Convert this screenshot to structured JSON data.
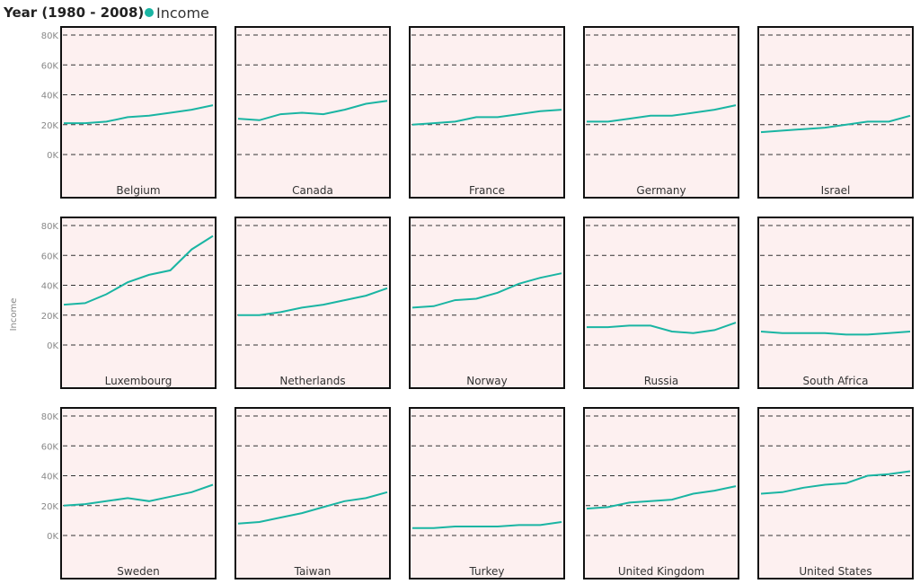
{
  "chart_data": {
    "type": "line",
    "title": "Year (1980 - 2008)",
    "ylabel": "Income",
    "ylim": [
      0,
      80000
    ],
    "yticks": [
      "0K",
      "20K",
      "40K",
      "60K",
      "80K"
    ],
    "grid": true,
    "legend": {
      "placement": "top-left",
      "entries": [
        "Income"
      ]
    },
    "colors": {
      "line": "#1ab5a3",
      "panel_bg": "#fdf0f0",
      "grid": "#333333"
    },
    "x": [
      1980,
      1984,
      1988,
      1992,
      1996,
      2000,
      2004,
      2008
    ],
    "panels": [
      {
        "name": "Belgium",
        "values": [
          21000,
          21000,
          22000,
          25000,
          26000,
          28000,
          30000,
          33000
        ]
      },
      {
        "name": "Canada",
        "values": [
          24000,
          23000,
          27000,
          28000,
          27000,
          30000,
          34000,
          36000
        ]
      },
      {
        "name": "France",
        "values": [
          20000,
          21000,
          22000,
          25000,
          25000,
          27000,
          29000,
          30000
        ]
      },
      {
        "name": "Germany",
        "values": [
          22000,
          22000,
          24000,
          26000,
          26000,
          28000,
          30000,
          33000
        ]
      },
      {
        "name": "Israel",
        "values": [
          15000,
          16000,
          17000,
          18000,
          20000,
          22000,
          22000,
          26000
        ]
      },
      {
        "name": "Luxembourg",
        "values": [
          27000,
          28000,
          34000,
          42000,
          47000,
          50000,
          64000,
          73000
        ]
      },
      {
        "name": "Netherlands",
        "values": [
          20000,
          20000,
          22000,
          25000,
          27000,
          30000,
          33000,
          38000
        ]
      },
      {
        "name": "Norway",
        "values": [
          25000,
          26000,
          30000,
          31000,
          35000,
          41000,
          45000,
          48000
        ]
      },
      {
        "name": "Russia",
        "values": [
          12000,
          12000,
          13000,
          13000,
          9000,
          8000,
          10000,
          15000
        ]
      },
      {
        "name": "South Africa",
        "values": [
          9000,
          8000,
          8000,
          8000,
          7000,
          7000,
          8000,
          9000
        ]
      },
      {
        "name": "Sweden",
        "values": [
          20000,
          21000,
          23000,
          25000,
          23000,
          26000,
          29000,
          34000
        ]
      },
      {
        "name": "Taiwan",
        "values": [
          8000,
          9000,
          12000,
          15000,
          19000,
          23000,
          25000,
          29000
        ]
      },
      {
        "name": "Turkey",
        "values": [
          5000,
          5000,
          6000,
          6000,
          6000,
          7000,
          7000,
          9000
        ]
      },
      {
        "name": "United Kingdom",
        "values": [
          18000,
          19000,
          22000,
          23000,
          24000,
          28000,
          30000,
          33000
        ]
      },
      {
        "name": "United States",
        "values": [
          28000,
          29000,
          32000,
          34000,
          35000,
          40000,
          41000,
          43000
        ]
      }
    ]
  }
}
